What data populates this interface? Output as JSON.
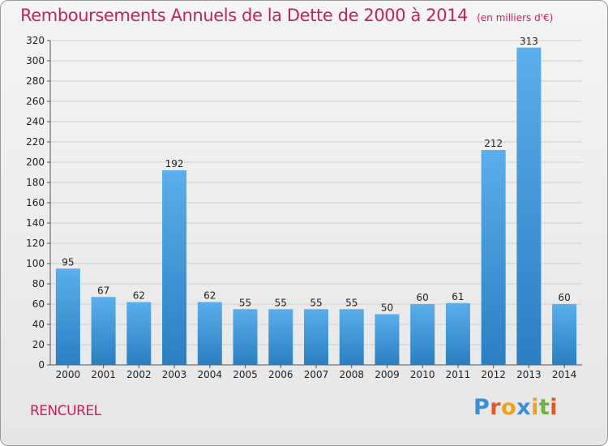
{
  "chart_data": {
    "type": "bar",
    "title": "Remboursements Annuels de la Dette de 2000 à 2014",
    "unit_label": "(en milliers d'€)",
    "categories": [
      "2000",
      "2001",
      "2002",
      "2003",
      "2004",
      "2005",
      "2006",
      "2007",
      "2008",
      "2009",
      "2010",
      "2011",
      "2012",
      "2013",
      "2014"
    ],
    "values": [
      95,
      67,
      62,
      192,
      62,
      55,
      55,
      55,
      55,
      50,
      60,
      61,
      212,
      313,
      60
    ],
    "ylim": [
      0,
      320
    ],
    "yticks": [
      0,
      20,
      40,
      60,
      80,
      100,
      120,
      140,
      160,
      180,
      200,
      220,
      240,
      260,
      280,
      300,
      320
    ],
    "xlabel": "",
    "ylabel": "",
    "grid": true,
    "bar_color_top": "#5aaeeb",
    "bar_color_bottom": "#2a7fc2",
    "title_color": "#c0245a"
  },
  "place_name": "RENCUREL",
  "logo": {
    "letters": [
      "P",
      "r",
      "o",
      "x",
      "i",
      "t",
      "i"
    ],
    "colors": [
      "#3a8fd4",
      "#e0582a",
      "#f0a020",
      "#3a8fd4",
      "#f0a020",
      "#6cb33f",
      "#e0582a"
    ]
  }
}
